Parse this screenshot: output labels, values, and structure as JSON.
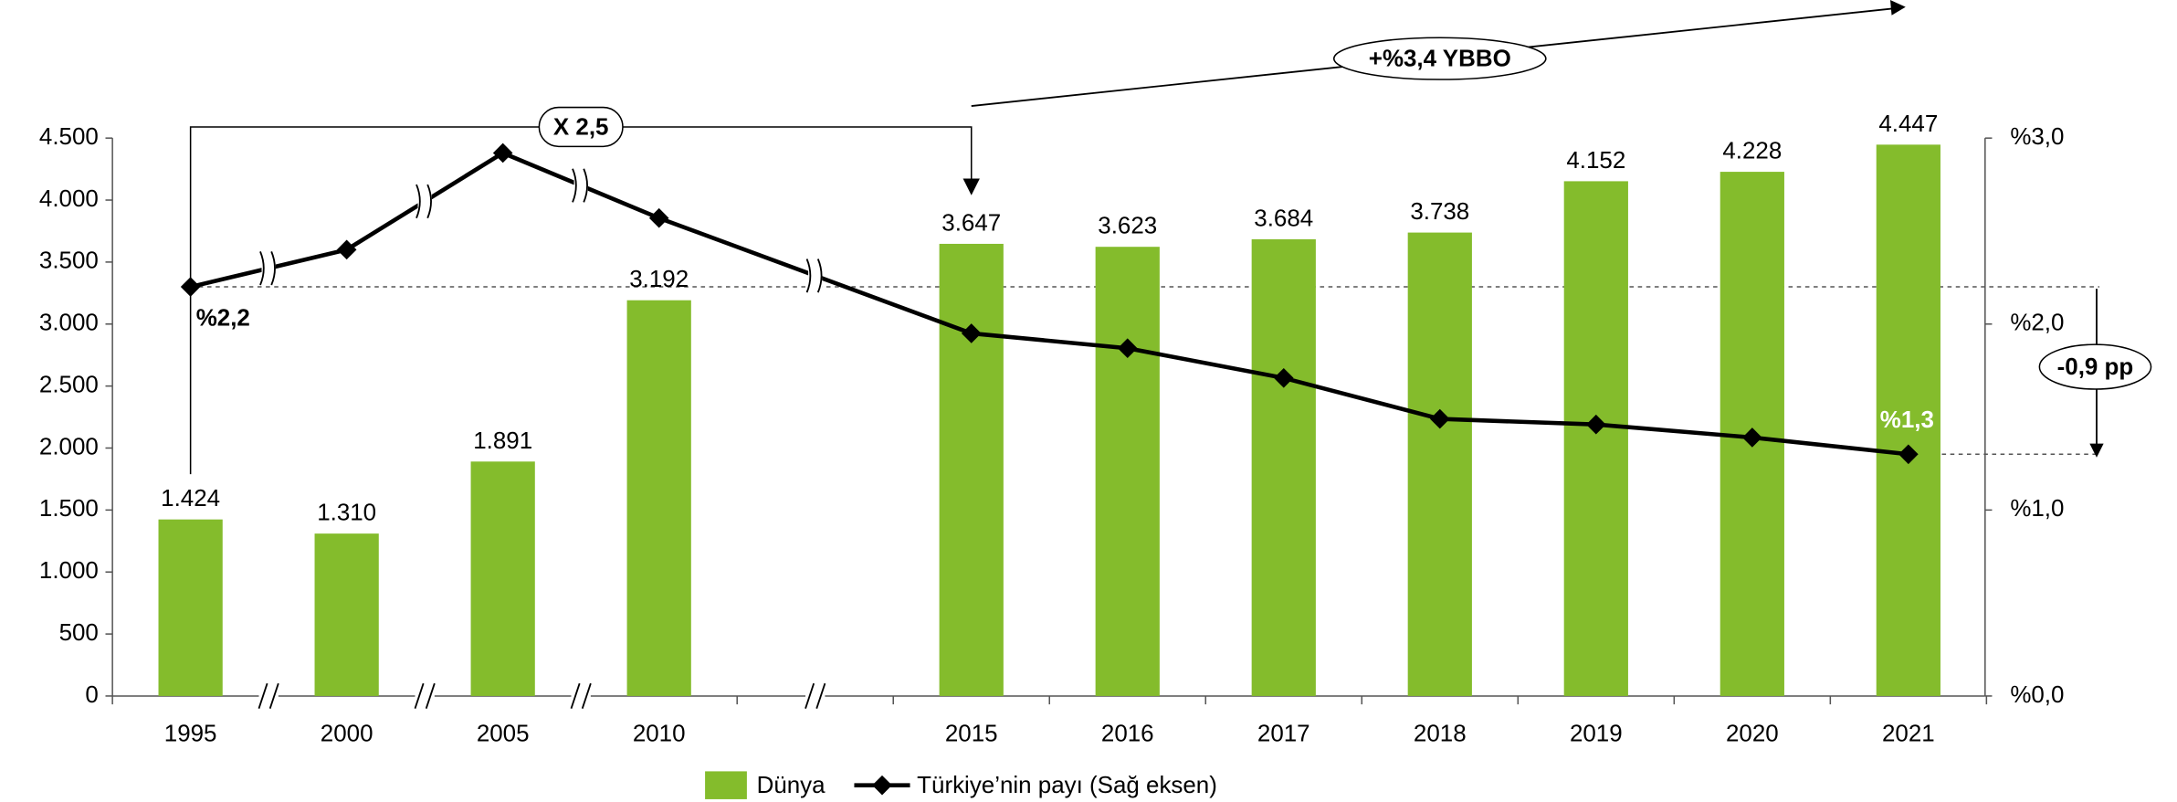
{
  "chart_data": {
    "type": "bar",
    "categories": [
      "1995",
      "2000",
      "2005",
      "2010",
      "2015",
      "2016",
      "2017",
      "2018",
      "2019",
      "2020",
      "2021"
    ],
    "series": [
      {
        "name": "Dünya",
        "type": "bar",
        "color": "#84bc2c",
        "values": [
          1424,
          1310,
          1891,
          3192,
          3647,
          3623,
          3684,
          3738,
          4152,
          4228,
          4447
        ],
        "value_labels": [
          "1.424",
          "1.310",
          "1.891",
          "3.192",
          "3.647",
          "3.623",
          "3.684",
          "3.738",
          "4.152",
          "4.228",
          "4.447"
        ]
      },
      {
        "name": "Türkiye’nin payı (Sağ eksen)",
        "type": "line",
        "axis": "y2",
        "color": "#000000",
        "values": [
          2.2,
          2.4,
          2.92,
          2.57,
          1.95,
          1.87,
          1.71,
          1.49,
          1.46,
          1.39,
          1.3
        ]
      }
    ],
    "ylim": [
      0,
      4500
    ],
    "yticks": [
      0,
      500,
      {
        "value": 1000,
        "label": "1.000"
      },
      {
        "value": 1500,
        "label": "1.500"
      },
      {
        "value": 2000,
        "label": "2.000"
      },
      {
        "value": 2500,
        "label": "2.500"
      },
      {
        "value": 3000,
        "label": "3.000"
      },
      {
        "value": 3500,
        "label": "3.500"
      },
      {
        "value": 4000,
        "label": "4.000"
      },
      {
        "value": 4500,
        "label": "4.500"
      }
    ],
    "y2lim": [
      0,
      3
    ],
    "y2ticks": [
      {
        "value": 0,
        "label": "%0,0"
      },
      {
        "value": 1,
        "label": "%1,0"
      },
      {
        "value": 2,
        "label": "%2,0"
      },
      {
        "value": 3,
        "label": "%3,0"
      }
    ],
    "annotations": [
      "%2,2",
      "%1,3",
      "X 2,5",
      "+%3,4 YBBO",
      "-0,9 pp"
    ],
    "legend": "bottom"
  }
}
